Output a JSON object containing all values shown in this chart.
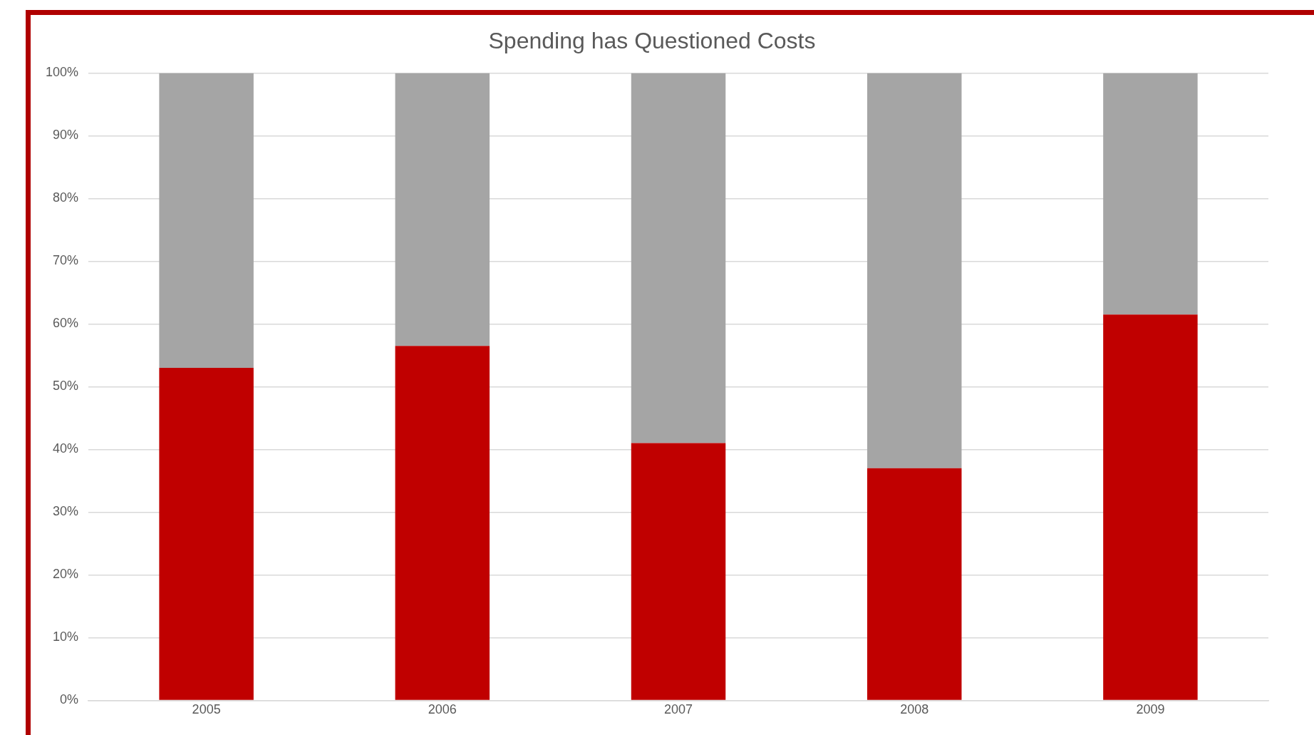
{
  "chart_data": {
    "type": "bar",
    "title": "Spending has Questioned Costs",
    "stacked": true,
    "categories": [
      "2005",
      "2006",
      "2007",
      "2008",
      "2009"
    ],
    "series": [
      {
        "color": "#c00000",
        "values": [
          53,
          56.5,
          41,
          37,
          61.5
        ]
      },
      {
        "color": "#a5a5a5",
        "values": [
          47,
          43.5,
          59,
          63,
          38.5
        ]
      }
    ],
    "ylim": [
      0,
      100
    ],
    "yticks": [
      {
        "value": 0,
        "label": "0%"
      },
      {
        "value": 10,
        "label": "10%"
      },
      {
        "value": 20,
        "label": "20%"
      },
      {
        "value": 30,
        "label": "30%"
      },
      {
        "value": 40,
        "label": "40%"
      },
      {
        "value": 50,
        "label": "50%"
      },
      {
        "value": 60,
        "label": "60%"
      },
      {
        "value": 70,
        "label": "70%"
      },
      {
        "value": 80,
        "label": "80%"
      },
      {
        "value": 90,
        "label": "90%"
      },
      {
        "value": 100,
        "label": "100%"
      }
    ],
    "grid": "y",
    "legend": false
  }
}
